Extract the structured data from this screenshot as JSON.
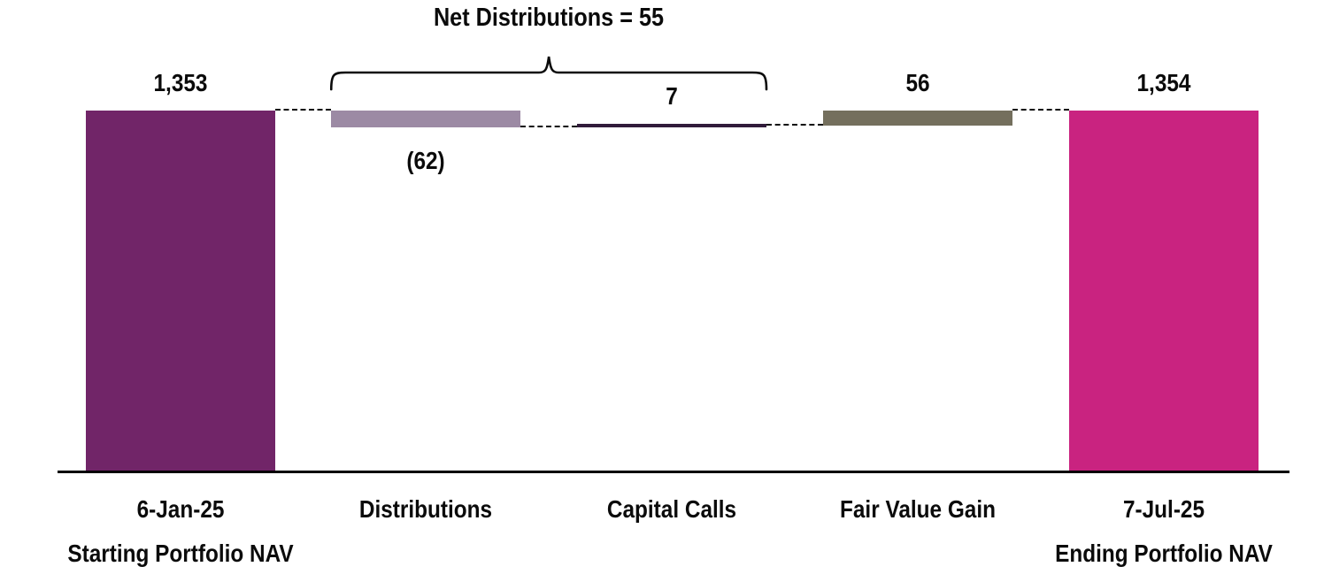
{
  "chart_data": {
    "type": "bar",
    "subtype": "waterfall",
    "title": "Net Distributions = 55",
    "background": "#FFFFFF",
    "grid": false,
    "y_axis_visible": false,
    "x_axis_line_color": "#000000",
    "connector_style": "dashed",
    "text_color": "#0B0B0B",
    "categories": [
      "6-Jan-25",
      "Distributions",
      "Capital Calls",
      "Fair Value Gain",
      "7-Jul-25"
    ],
    "bars": [
      {
        "category": "6-Jan-25",
        "sublabel": "Starting Portfolio NAV",
        "kind": "total",
        "value": 1353,
        "label": "1,353",
        "label_position": "above",
        "color": "#712568"
      },
      {
        "category": "Distributions",
        "sublabel": "",
        "kind": "delta",
        "value": -62,
        "label": "(62)",
        "label_position": "below",
        "color": "#9C8AA4"
      },
      {
        "category": "Capital Calls",
        "sublabel": "",
        "kind": "delta",
        "value": 7,
        "label": "7",
        "label_position": "above",
        "color": "#311C3B"
      },
      {
        "category": "Fair Value Gain",
        "sublabel": "",
        "kind": "delta",
        "value": 56,
        "label": "56",
        "label_position": "above",
        "color": "#746F5D"
      },
      {
        "category": "7-Jul-25",
        "sublabel": "Ending Portfolio NAV",
        "kind": "total",
        "value": 1354,
        "label": "1,354",
        "label_position": "above",
        "color": "#C92380"
      }
    ],
    "annotation": {
      "label": "Net Distributions = 55",
      "value": 55,
      "spans": [
        "Distributions",
        "Capital Calls"
      ],
      "brace_color": "#0B0B0B"
    },
    "baseline": 0
  }
}
